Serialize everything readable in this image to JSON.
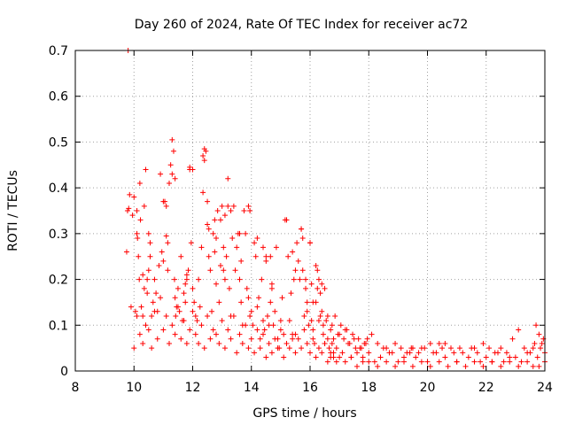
{
  "chart_data": {
    "type": "scatter",
    "title": "Day 260 of 2024, Rate Of TEC Index for receiver ac72",
    "xlabel": "GPS time / hours",
    "ylabel": "ROTI / TECUs",
    "xlim": [
      8,
      24
    ],
    "ylim": [
      0,
      0.7
    ],
    "xticks": [
      8,
      10,
      12,
      14,
      16,
      18,
      20,
      22,
      24
    ],
    "xtick_labels": [
      "8",
      "10",
      "12",
      "14",
      "16",
      "18",
      "20",
      "22",
      "24"
    ],
    "yticks": [
      0,
      0.1,
      0.2,
      0.3,
      0.4,
      0.5,
      0.6,
      0.7
    ],
    "ytick_labels": [
      "0",
      "0.1",
      "0.2",
      "0.3",
      "0.4",
      "0.5",
      "0.6",
      "0.7"
    ],
    "grid": true,
    "marker": "+",
    "color": "#ff0000",
    "series": [
      {
        "name": "ROTI",
        "x": [
          9.8,
          9.82,
          9.75,
          9.78,
          9.85,
          10.05,
          10.1,
          10.12,
          10.15,
          10.18,
          10.2,
          10.22,
          10.25,
          10.3,
          10.35,
          10.4,
          10.45,
          10.5,
          10.55,
          10.6,
          10.65,
          10.7,
          10.75,
          10.8,
          10.85,
          10.9,
          10.95,
          11.0,
          11.05,
          11.1,
          11.15,
          11.2,
          11.25,
          11.3,
          11.35,
          11.38,
          11.4,
          11.42,
          11.45,
          11.5,
          11.55,
          11.6,
          11.65,
          11.7,
          11.75,
          11.8,
          11.85,
          11.9,
          11.95,
          12.0,
          12.05,
          12.1,
          12.15,
          12.2,
          12.25,
          12.3,
          12.35,
          12.4,
          12.45,
          12.5,
          12.55,
          12.6,
          12.65,
          12.7,
          12.75,
          12.8,
          12.85,
          12.9,
          12.95,
          13.0,
          13.05,
          13.1,
          13.15,
          13.2,
          13.25,
          13.3,
          13.35,
          13.4,
          13.45,
          13.5,
          13.55,
          13.6,
          13.65,
          13.7,
          13.75,
          13.8,
          13.85,
          13.9,
          13.95,
          14.0,
          14.05,
          14.1,
          14.15,
          14.2,
          14.25,
          14.3,
          14.35,
          14.4,
          14.45,
          14.5,
          14.55,
          14.6,
          14.65,
          14.7,
          14.75,
          14.8,
          14.85,
          14.9,
          14.95,
          15.0,
          15.05,
          15.1,
          15.15,
          15.2,
          15.25,
          15.3,
          15.35,
          15.4,
          15.45,
          15.5,
          15.55,
          15.6,
          15.65,
          15.7,
          15.75,
          15.8,
          15.85,
          15.9,
          15.95,
          16.0,
          16.05,
          16.1,
          16.15,
          16.2,
          16.25,
          16.3,
          16.35,
          16.4,
          16.45,
          16.5,
          16.55,
          16.6,
          16.65,
          16.7,
          16.75,
          16.8,
          16.9,
          17.0,
          17.1,
          17.2,
          17.3,
          17.4,
          17.5,
          17.6,
          17.7,
          17.8,
          17.9,
          18.0,
          18.2,
          18.4,
          18.6,
          18.8,
          19.0,
          19.2,
          19.4,
          19.6,
          19.8,
          20.0,
          20.2,
          20.4,
          20.6,
          20.8,
          21.0,
          21.2,
          21.4,
          21.6,
          21.8,
          22.0,
          22.2,
          22.4,
          22.6,
          22.8,
          23.0,
          23.2,
          23.4,
          23.6,
          23.7,
          23.8,
          23.9,
          24.0,
          9.9,
          10.0,
          10.1,
          10.2,
          10.3,
          10.4,
          10.5,
          10.6,
          10.7,
          10.8,
          10.9,
          11.0,
          11.1,
          11.2,
          11.3,
          11.4,
          11.5,
          11.6,
          11.7,
          11.8,
          11.9,
          12.0,
          12.1,
          12.2,
          12.3,
          12.4,
          12.5,
          12.6,
          12.7,
          12.8,
          12.9,
          13.0,
          13.1,
          13.2,
          13.3,
          13.4,
          13.5,
          13.6,
          13.7,
          13.8,
          13.9,
          14.0,
          14.1,
          14.2,
          14.3,
          14.4,
          14.5,
          14.6,
          14.7,
          14.8,
          14.9,
          15.0,
          15.1,
          15.2,
          15.3,
          15.4,
          15.5,
          15.6,
          15.7,
          15.8,
          15.9,
          16.0,
          16.1,
          16.2,
          16.3,
          16.4,
          16.5,
          16.6,
          16.7,
          16.8,
          16.9,
          17.0,
          17.2,
          17.4,
          17.6,
          17.8,
          18.0,
          18.3,
          18.6,
          18.9,
          19.2,
          19.5,
          19.8,
          20.1,
          20.4,
          20.7,
          21.0,
          21.3,
          21.6,
          21.9,
          22.2,
          22.5,
          22.8,
          23.1,
          23.4,
          23.6,
          23.8,
          24.0,
          11.9,
          12.0,
          11.3,
          11.4,
          12.35,
          12.4,
          11.0,
          11.1,
          11.15,
          13.2,
          13.3,
          13.1,
          13.9,
          13.95,
          12.5,
          12.55,
          14.2,
          15.2,
          15.7,
          15.75,
          16.0,
          10.0,
          10.1,
          9.95,
          10.5,
          10.55,
          13.6,
          13.65,
          12.75,
          12.8,
          14.4,
          14.5,
          15.4,
          15.5,
          16.2,
          16.3,
          16.4,
          16.5,
          10.3,
          10.35,
          10.45,
          11.75,
          11.8,
          12.95,
          13.05,
          14.65,
          14.7,
          15.85,
          15.9,
          16.05,
          16.1,
          16.25,
          16.35,
          16.45,
          16.6,
          16.7,
          16.75,
          16.8,
          16.85,
          16.95,
          17.05,
          17.15,
          17.25,
          17.35,
          17.45,
          17.55,
          17.65,
          17.75,
          17.85,
          17.95,
          18.1,
          18.3,
          18.5,
          18.7,
          18.9,
          19.1,
          19.3,
          19.45,
          19.5,
          19.7,
          19.9,
          20.1,
          20.3,
          20.5,
          20.6,
          20.9,
          21.1,
          21.5,
          21.7,
          21.9,
          22.1,
          22.3,
          22.5,
          22.7,
          22.9,
          23.1,
          23.3,
          23.5,
          23.65,
          23.75,
          23.85,
          23.95
        ],
        "y": [
          0.7,
          0.355,
          0.26,
          0.35,
          0.385,
          0.13,
          0.3,
          0.29,
          0.25,
          0.2,
          0.41,
          0.33,
          0.14,
          0.12,
          0.36,
          0.44,
          0.17,
          0.22,
          0.25,
          0.12,
          0.15,
          0.2,
          0.17,
          0.13,
          0.23,
          0.43,
          0.26,
          0.24,
          0.37,
          0.295,
          0.22,
          0.41,
          0.45,
          0.505,
          0.48,
          0.2,
          0.16,
          0.12,
          0.14,
          0.18,
          0.13,
          0.25,
          0.11,
          0.17,
          0.15,
          0.2,
          0.22,
          0.44,
          0.28,
          0.18,
          0.15,
          0.12,
          0.11,
          0.2,
          0.14,
          0.27,
          0.39,
          0.485,
          0.48,
          0.37,
          0.25,
          0.22,
          0.13,
          0.3,
          0.26,
          0.19,
          0.35,
          0.15,
          0.33,
          0.36,
          0.27,
          0.2,
          0.25,
          0.42,
          0.18,
          0.12,
          0.29,
          0.36,
          0.22,
          0.27,
          0.3,
          0.2,
          0.15,
          0.1,
          0.35,
          0.3,
          0.18,
          0.16,
          0.12,
          0.13,
          0.1,
          0.28,
          0.25,
          0.14,
          0.16,
          0.07,
          0.2,
          0.11,
          0.09,
          0.24,
          0.12,
          0.1,
          0.15,
          0.18,
          0.1,
          0.13,
          0.27,
          0.07,
          0.05,
          0.11,
          0.16,
          0.08,
          0.33,
          0.06,
          0.25,
          0.11,
          0.17,
          0.07,
          0.2,
          0.08,
          0.28,
          0.24,
          0.2,
          0.31,
          0.22,
          0.12,
          0.18,
          0.15,
          0.1,
          0.28,
          0.19,
          0.09,
          0.06,
          0.15,
          0.22,
          0.11,
          0.17,
          0.13,
          0.08,
          0.06,
          0.11,
          0.07,
          0.05,
          0.04,
          0.06,
          0.03,
          0.05,
          0.08,
          0.04,
          0.09,
          0.06,
          0.03,
          0.07,
          0.04,
          0.05,
          0.03,
          0.06,
          0.04,
          0.02,
          0.03,
          0.05,
          0.04,
          0.02,
          0.03,
          0.04,
          0.03,
          0.05,
          0.02,
          0.04,
          0.06,
          0.03,
          0.05,
          0.02,
          0.04,
          0.03,
          0.05,
          0.02,
          0.03,
          0.02,
          0.04,
          0.02,
          0.03,
          0.03,
          0.02,
          0.04,
          0.05,
          0.1,
          0.08,
          0.06,
          0.04,
          0.14,
          0.05,
          0.12,
          0.08,
          0.06,
          0.1,
          0.09,
          0.05,
          0.13,
          0.07,
          0.16,
          0.09,
          0.12,
          0.06,
          0.1,
          0.08,
          0.14,
          0.07,
          0.11,
          0.06,
          0.09,
          0.13,
          0.08,
          0.06,
          0.1,
          0.05,
          0.12,
          0.07,
          0.09,
          0.08,
          0.06,
          0.11,
          0.05,
          0.09,
          0.07,
          0.12,
          0.04,
          0.08,
          0.06,
          0.1,
          0.05,
          0.07,
          0.04,
          0.09,
          0.05,
          0.08,
          0.03,
          0.06,
          0.04,
          0.07,
          0.05,
          0.09,
          0.03,
          0.06,
          0.05,
          0.08,
          0.04,
          0.07,
          0.05,
          0.09,
          0.06,
          0.04,
          0.07,
          0.03,
          0.05,
          0.04,
          0.06,
          0.02,
          0.03,
          0.04,
          0.02,
          0.03,
          0.02,
          0.03,
          0.01,
          0.02,
          0.02,
          0.01,
          0.02,
          0.01,
          0.02,
          0.01,
          0.02,
          0.01,
          0.02,
          0.01,
          0.02,
          0.01,
          0.02,
          0.01,
          0.02,
          0.01,
          0.02,
          0.01,
          0.02,
          0.01,
          0.01,
          0.02,
          0.445,
          0.44,
          0.43,
          0.42,
          0.47,
          0.46,
          0.37,
          0.36,
          0.28,
          0.36,
          0.35,
          0.34,
          0.36,
          0.35,
          0.32,
          0.31,
          0.29,
          0.33,
          0.31,
          0.29,
          0.28,
          0.38,
          0.35,
          0.34,
          0.3,
          0.28,
          0.3,
          0.24,
          0.33,
          0.29,
          0.27,
          0.25,
          0.26,
          0.22,
          0.23,
          0.2,
          0.19,
          0.18,
          0.21,
          0.18,
          0.2,
          0.19,
          0.21,
          0.23,
          0.22,
          0.25,
          0.19,
          0.2,
          0.13,
          0.11,
          0.15,
          0.18,
          0.12,
          0.1,
          0.12,
          0.09,
          0.1,
          0.07,
          0.12,
          0.08,
          0.1,
          0.07,
          0.09,
          0.06,
          0.08,
          0.05,
          0.07,
          0.05,
          0.06,
          0.07,
          0.08,
          0.06,
          0.05,
          0.04,
          0.06,
          0.05,
          0.04,
          0.05,
          0.05,
          0.04,
          0.05,
          0.06,
          0.04,
          0.05,
          0.06,
          0.04,
          0.05,
          0.05,
          0.04,
          0.06,
          0.05,
          0.04,
          0.05,
          0.04,
          0.07,
          0.09,
          0.05,
          0.04,
          0.06,
          0.03,
          0.05,
          0.07
        ]
      }
    ]
  }
}
